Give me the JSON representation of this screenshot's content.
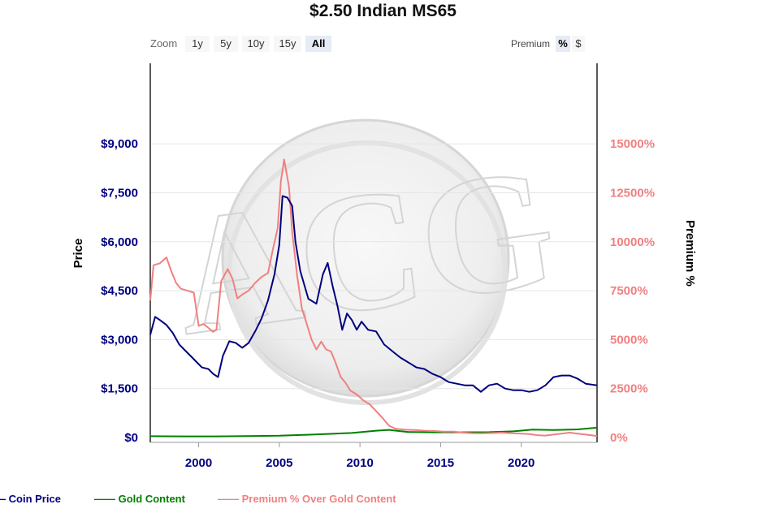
{
  "title": "$2.50 Indian MS65",
  "zoom": {
    "label": "Zoom",
    "buttons": [
      {
        "label": "1y",
        "active": false
      },
      {
        "label": "5y",
        "active": false
      },
      {
        "label": "10y",
        "active": false
      },
      {
        "label": "15y",
        "active": false
      },
      {
        "label": "All",
        "active": true
      }
    ]
  },
  "premium_toggle": {
    "label": "Premium",
    "buttons": [
      {
        "label": "%",
        "active": true
      },
      {
        "label": "$",
        "active": false
      }
    ]
  },
  "watermark": {
    "text": "ACG"
  },
  "colors": {
    "coin_price": "#000080",
    "gold_content": "#008000",
    "premium": "#f08080"
  },
  "chart_data": {
    "type": "line",
    "title": "$2.50 Indian MS65",
    "xlabel": "",
    "ylabel": "Price",
    "y2label": "Premium %",
    "xlim": [
      1997.0,
      2024.7
    ],
    "ylim": [
      0,
      10000
    ],
    "y2lim": [
      0,
      16670
    ],
    "x_ticks": [
      "2000",
      "2005",
      "2010",
      "2015",
      "2020"
    ],
    "y_ticks": [
      "$0",
      "$1,500",
      "$3,000",
      "$4,500",
      "$6,000",
      "$7,500",
      "$9,000"
    ],
    "y2_ticks": [
      "0%",
      "2500%",
      "5000%",
      "7500%",
      "10000%",
      "12500%",
      "15000%"
    ],
    "grid": true,
    "legend_position": "bottom",
    "series": [
      {
        "name": "Coin Price",
        "axis": "left",
        "x": [
          1997.0,
          1997.3,
          1997.6,
          1998.0,
          1998.4,
          1998.8,
          1999.2,
          1999.7,
          2000.2,
          2000.6,
          2000.9,
          2001.2,
          2001.5,
          2001.9,
          2002.3,
          2002.7,
          2003.1,
          2003.5,
          2003.9,
          2004.3,
          2004.7,
          2005.0,
          2005.2,
          2005.5,
          2005.8,
          2006.0,
          2006.3,
          2006.8,
          2007.3,
          2007.7,
          2008.0,
          2008.3,
          2008.6,
          2008.9,
          2009.2,
          2009.5,
          2009.8,
          2010.1,
          2010.5,
          2011.0,
          2011.5,
          2012.0,
          2012.5,
          2013.0,
          2013.5,
          2014.0,
          2014.5,
          2015.0,
          2015.5,
          2016.0,
          2016.5,
          2017.0,
          2017.5,
          2018.0,
          2018.5,
          2019.0,
          2019.5,
          2020.0,
          2020.5,
          2021.0,
          2021.5,
          2022.0,
          2022.5,
          2023.0,
          2023.5,
          2024.0,
          2024.7
        ],
        "values": [
          3150,
          3700,
          3600,
          3450,
          3200,
          2850,
          2650,
          2400,
          2150,
          2100,
          1950,
          1850,
          2500,
          2950,
          2900,
          2750,
          2900,
          3250,
          3650,
          4200,
          5000,
          5900,
          7400,
          7350,
          7100,
          6000,
          5100,
          4250,
          4100,
          5000,
          5350,
          4650,
          4050,
          3300,
          3800,
          3600,
          3300,
          3550,
          3300,
          3250,
          2850,
          2650,
          2450,
          2300,
          2150,
          2100,
          1950,
          1850,
          1700,
          1650,
          1600,
          1600,
          1400,
          1600,
          1650,
          1500,
          1450,
          1450,
          1400,
          1450,
          1600,
          1850,
          1900,
          1900,
          1800,
          1650,
          1600
        ]
      },
      {
        "name": "Gold Content",
        "axis": "left",
        "x": [
          1997.0,
          1999.0,
          2001.0,
          2003.0,
          2005.0,
          2006.5,
          2008.0,
          2009.5,
          2011.0,
          2011.8,
          2013.0,
          2014.5,
          2016.0,
          2018.0,
          2019.5,
          2020.7,
          2022.0,
          2023.5,
          2024.7
        ],
        "values": [
          40,
          35,
          35,
          45,
          55,
          80,
          110,
          140,
          210,
          235,
          170,
          160,
          160,
          165,
          190,
          245,
          230,
          250,
          300
        ]
      },
      {
        "name": "Premium % Over Gold Content",
        "axis": "right",
        "x": [
          1997.0,
          1997.2,
          1997.6,
          1998.0,
          1998.3,
          1998.6,
          1998.9,
          1999.3,
          1999.7,
          2000.0,
          2000.3,
          2000.6,
          2000.9,
          2001.1,
          2001.4,
          2001.8,
          2002.1,
          2002.4,
          2002.7,
          2003.1,
          2003.5,
          2003.9,
          2004.3,
          2004.6,
          2004.9,
          2005.1,
          2005.3,
          2005.6,
          2005.8,
          2006.1,
          2006.4,
          2006.7,
          2007.0,
          2007.3,
          2007.6,
          2007.9,
          2008.2,
          2008.5,
          2008.8,
          2009.1,
          2009.4,
          2009.8,
          2010.2,
          2010.6,
          2011.0,
          2011.4,
          2011.8,
          2012.2,
          2012.8,
          2013.4,
          2014.0,
          2014.6,
          2015.2,
          2015.8,
          2016.4,
          2017.0,
          2017.6,
          2018.2,
          2018.8,
          2019.4,
          2020.0,
          2020.5,
          2021.0,
          2021.5,
          2022.0,
          2022.5,
          2023.0,
          2023.5,
          2024.0,
          2024.7
        ],
        "values": [
          7000,
          8800,
          8900,
          9200,
          8500,
          7900,
          7600,
          7500,
          7400,
          5700,
          5800,
          5600,
          5400,
          5500,
          8000,
          8600,
          8100,
          7100,
          7300,
          7500,
          7900,
          8200,
          8400,
          9600,
          10700,
          13100,
          14200,
          12800,
          10500,
          8300,
          6600,
          5800,
          5000,
          4500,
          4900,
          4500,
          4400,
          3800,
          3100,
          2800,
          2400,
          2200,
          1900,
          1700,
          1350,
          1000,
          600,
          450,
          400,
          380,
          350,
          330,
          300,
          300,
          250,
          220,
          210,
          230,
          250,
          220,
          200,
          180,
          120,
          100,
          150,
          200,
          250,
          200,
          150,
          80
        ]
      }
    ]
  }
}
